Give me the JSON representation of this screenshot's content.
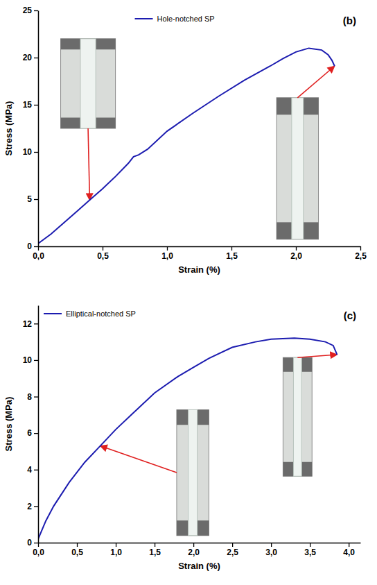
{
  "chart_data": [
    {
      "type": "line",
      "annotation": "(b)",
      "x_label": "Strain (%)",
      "y_label": "Stress (MPa)",
      "x": [
        0.0,
        0.1,
        0.2,
        0.3,
        0.4,
        0.5,
        0.6,
        0.7,
        0.74,
        0.78,
        0.85,
        1.0,
        1.2,
        1.4,
        1.6,
        1.8,
        1.9,
        2.0,
        2.1,
        2.2,
        2.25,
        2.28,
        2.3
      ],
      "series": [
        {
          "name": "Hole-notched SP",
          "color": "#1c1cb0",
          "values": [
            0.3,
            1.3,
            2.5,
            3.7,
            4.9,
            6.1,
            7.4,
            8.8,
            9.5,
            9.7,
            10.3,
            12.2,
            14.1,
            15.9,
            17.6,
            19.1,
            19.9,
            20.6,
            21.0,
            20.8,
            20.3,
            19.7,
            19.1
          ]
        }
      ],
      "xlim": [
        0,
        2.5
      ],
      "ylim": [
        0,
        25
      ],
      "xticks": [
        {
          "value": 0,
          "label": "0,0"
        },
        {
          "value": 0.5,
          "label": "0,5"
        },
        {
          "value": 1,
          "label": "1,0"
        },
        {
          "value": 1.5,
          "label": "1,5"
        },
        {
          "value": 2,
          "label": "2,0"
        },
        {
          "value": 2.5,
          "label": "2,5"
        }
      ],
      "yticks": [
        0,
        5,
        10,
        15,
        20,
        25
      ],
      "legend": "top"
    },
    {
      "type": "line",
      "annotation": "(c)",
      "x_label": "Strain (%)",
      "y_label": "Stress (MPa)",
      "x": [
        0.0,
        0.1,
        0.2,
        0.4,
        0.6,
        0.8,
        1.0,
        1.2,
        1.5,
        1.8,
        2.0,
        2.2,
        2.5,
        2.8,
        3.0,
        3.3,
        3.5,
        3.7,
        3.8,
        3.85
      ],
      "series": [
        {
          "name": "Elliptical-notched SP",
          "color": "#1c1cb0",
          "values": [
            0.2,
            1.2,
            2.0,
            3.3,
            4.4,
            5.3,
            6.2,
            7.0,
            8.2,
            9.1,
            9.6,
            10.1,
            10.7,
            11.0,
            11.15,
            11.2,
            11.15,
            11.0,
            10.8,
            10.3
          ]
        }
      ],
      "xlim": [
        0,
        4.15
      ],
      "ylim": [
        0,
        13
      ],
      "xticks": [
        {
          "value": 0,
          "label": "0,0"
        },
        {
          "value": 0.5,
          "label": "0,5"
        },
        {
          "value": 1,
          "label": "1,0"
        },
        {
          "value": 1.5,
          "label": "1,5"
        },
        {
          "value": 2,
          "label": "2,0"
        },
        {
          "value": 2.5,
          "label": "2,5"
        },
        {
          "value": 3,
          "label": "3,0"
        },
        {
          "value": 3.5,
          "label": "3,5"
        },
        {
          "value": 4,
          "label": "4,0"
        }
      ],
      "yticks": [
        0,
        2,
        4,
        6,
        8,
        10,
        12
      ],
      "legend": "top left"
    }
  ]
}
